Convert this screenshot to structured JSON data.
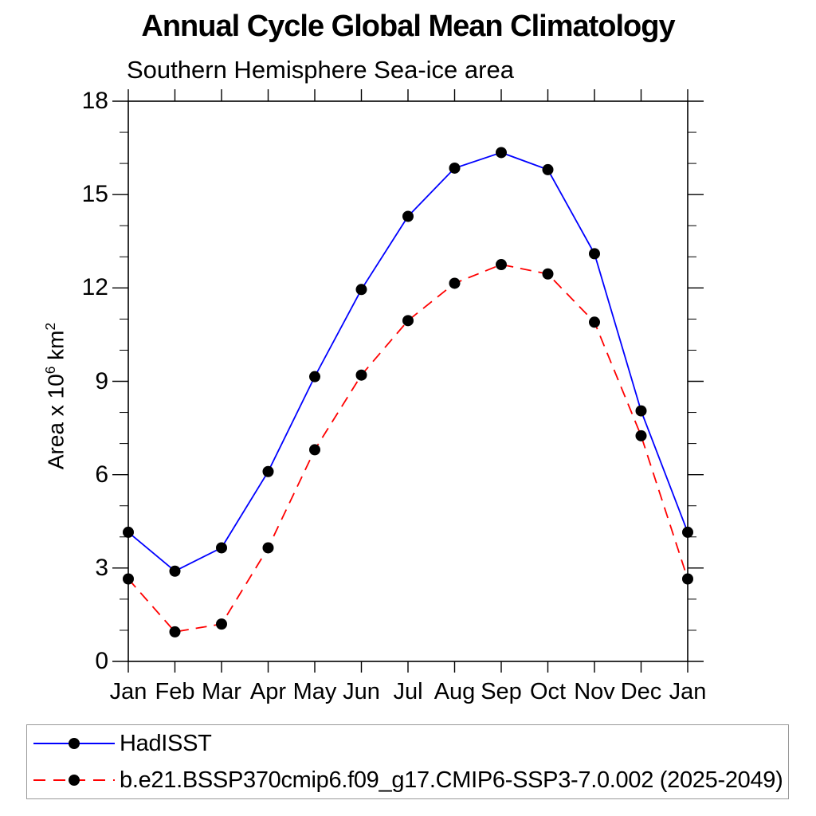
{
  "header": {
    "title": "Annual Cycle Global Mean Climatology",
    "subtitle": "Southern Hemisphere Sea-ice area"
  },
  "chart_data": {
    "type": "line",
    "title": "Annual Cycle Global Mean Climatology",
    "subtitle": "Southern Hemisphere Sea-ice area",
    "categories": [
      "Jan",
      "Feb",
      "Mar",
      "Apr",
      "May",
      "Jun",
      "Jul",
      "Aug",
      "Sep",
      "Oct",
      "Nov",
      "Dec",
      "Jan"
    ],
    "xlabel": "",
    "ylabel": "Area x 10⁶ km²",
    "ylabel_parts": {
      "prefix": "Area x 10",
      "sup1": "6",
      "mid": " km",
      "sup2": "2"
    },
    "ylim": [
      0,
      18
    ],
    "yticks": [
      0,
      3,
      6,
      9,
      12,
      15,
      18
    ],
    "y_minor_step": 1,
    "grid": false,
    "legend_position": "bottom-left-box",
    "frame_color": "#000000",
    "series": [
      {
        "name": "HadISST",
        "color": "#0000ff",
        "line_style": "solid",
        "marker": "circle",
        "marker_color": "#000000",
        "values": [
          4.15,
          2.9,
          3.65,
          6.1,
          9.15,
          11.95,
          14.3,
          15.85,
          16.35,
          15.8,
          13.1,
          8.05,
          4.15
        ]
      },
      {
        "name": "b.e21.BSSP370cmip6.f09_g17.CMIP6-SSP3-7.0.002 (2025-2049)",
        "color": "#ff0000",
        "line_style": "dashed",
        "marker": "circle",
        "marker_color": "#000000",
        "values": [
          2.65,
          0.95,
          1.2,
          3.65,
          6.8,
          9.2,
          10.95,
          12.15,
          12.75,
          12.45,
          10.9,
          7.25,
          2.65
        ]
      }
    ]
  }
}
